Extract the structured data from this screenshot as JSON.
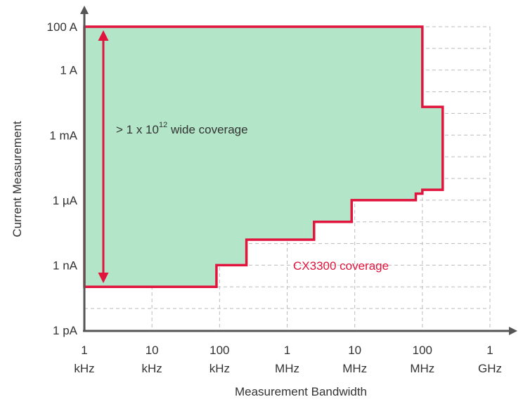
{
  "chart_data": {
    "type": "area",
    "x_label": "Measurement Bandwidth",
    "y_label": "Current Measurement",
    "x_log": true,
    "y_log": true,
    "grid": true,
    "xlim": [
      1000,
      1000000000
    ],
    "ylim": [
      1e-12,
      100
    ],
    "xticks": [
      {
        "value": 1000,
        "label": "1 kHz"
      },
      {
        "value": 10000,
        "label": "10 kHz"
      },
      {
        "value": 100000,
        "label": "100 kHz"
      },
      {
        "value": 1000000,
        "label": "1 MHz"
      },
      {
        "value": 10000000,
        "label": "10 MHz"
      },
      {
        "value": 100000000,
        "label": "100 MHz"
      },
      {
        "value": 1000000000,
        "label": "1 GHz"
      }
    ],
    "yticks": [
      {
        "value": 100,
        "label": "100 A"
      },
      {
        "value": 1,
        "label": "1 A"
      },
      {
        "value": 0.001,
        "label": "1 mA"
      },
      {
        "value": 1e-06,
        "label": "1 µA"
      },
      {
        "value": 1e-09,
        "label": "1 nA"
      },
      {
        "value": 1e-12,
        "label": "1 pA"
      }
    ],
    "yminorticks": [
      10,
      0.1,
      0.01,
      0.0001,
      1e-05,
      1e-07,
      1e-08,
      1e-10,
      1e-11
    ],
    "x": [
      1000,
      100000000,
      100000000,
      200000000,
      200000000,
      100000000,
      100000000,
      80000000,
      80000000,
      9000000,
      9000000,
      2500000,
      2500000,
      250000,
      250000,
      90000,
      90000,
      1000
    ],
    "series": [
      {
        "name": "CX3300 coverage",
        "color": "#e0143c",
        "fill": "#b3e5c8",
        "values": [
          100,
          100,
          0.02,
          0.02,
          3e-06,
          3e-06,
          2e-06,
          2e-06,
          1e-06,
          1e-06,
          1e-07,
          1e-07,
          1.5e-08,
          1.5e-08,
          1e-09,
          1e-09,
          1e-10,
          1e-10
        ]
      }
    ],
    "annotation": {
      "base": "> 1 x 10",
      "exponent": "12",
      "suffix": " wide coverage"
    }
  }
}
